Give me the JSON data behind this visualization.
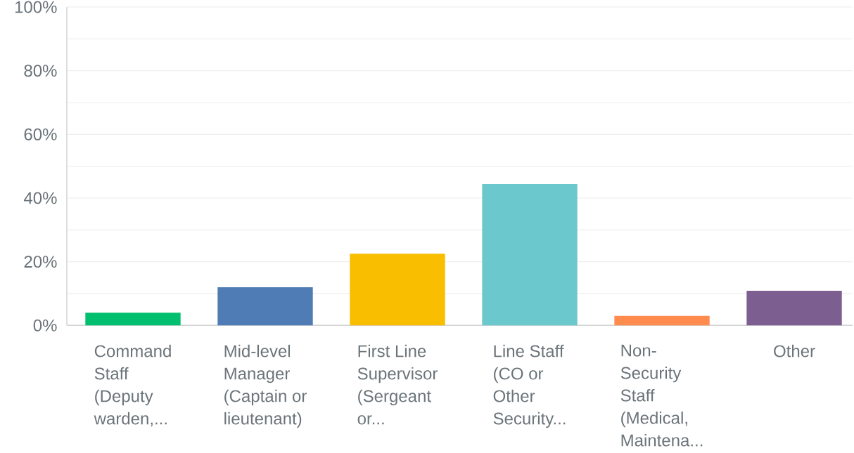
{
  "chart_data": {
    "type": "bar",
    "categories": [
      "Command Staff (Deputy warden,...",
      "Mid-level Manager (Captain or lieutenant)",
      "First Line Supervisor (Sergeant or...",
      "Line Staff (CO or Other Security...",
      "Non-Security Staff (Medical, Maintena...",
      "Other"
    ],
    "values": [
      4.0,
      12.0,
      22.5,
      44.4,
      3.0,
      10.9
    ],
    "colors": [
      "#00bf6f",
      "#507cb6",
      "#f9be00",
      "#6bc8cd",
      "#ff8b4f",
      "#7d5e90"
    ],
    "ylim": [
      0,
      100
    ],
    "yticks": [
      {
        "value": 0,
        "label": "0%"
      },
      {
        "value": 10,
        "label": null
      },
      {
        "value": 20,
        "label": "20%"
      },
      {
        "value": 30,
        "label": null
      },
      {
        "value": 40,
        "label": "40%"
      },
      {
        "value": 50,
        "label": null
      },
      {
        "value": 60,
        "label": "60%"
      },
      {
        "value": 70,
        "label": null
      },
      {
        "value": 80,
        "label": "80%"
      },
      {
        "value": 90,
        "label": null
      },
      {
        "value": 100,
        "label": "100%"
      }
    ],
    "grid": "y"
  }
}
